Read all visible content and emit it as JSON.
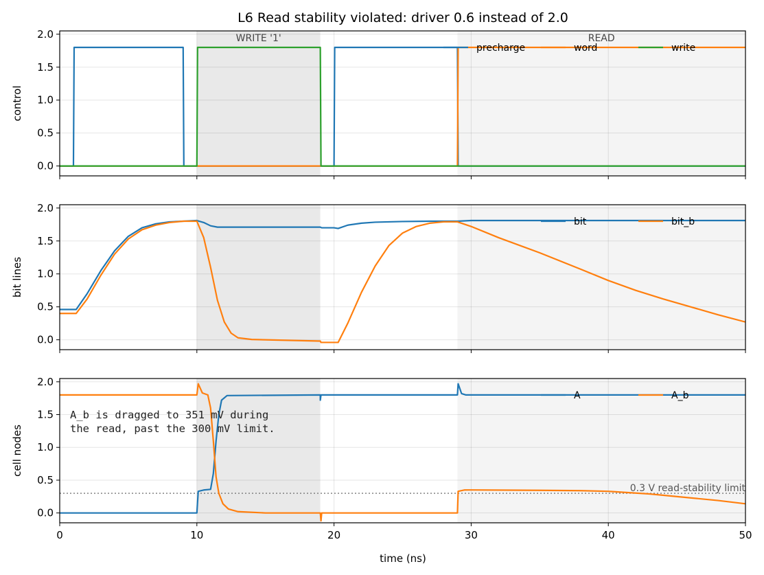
{
  "chart_data": {
    "type": "line",
    "title": "L6  Read stability violated: driver 0.6 instead of 2.0",
    "xlabel": "time (ns)",
    "xlim": [
      0,
      50
    ],
    "x_ticks": [
      "0",
      "10",
      "20",
      "30",
      "40",
      "50"
    ],
    "y_ticks": [
      "0.0",
      "0.5",
      "1.0",
      "1.5",
      "2.0"
    ],
    "regions": [
      {
        "label": "WRITE '1'",
        "x": [
          10,
          19
        ],
        "color": "#e9e9e9"
      },
      {
        "label": "READ",
        "x": [
          29,
          50
        ],
        "color": "#f4f4f4"
      }
    ],
    "panels": [
      {
        "ylabel": "control",
        "ylim": [
          -0.15,
          2.05
        ],
        "legend_placement": "top-right",
        "series": [
          {
            "name": "precharge",
            "color": "#1f77b4",
            "points": [
              [
                0,
                0
              ],
              [
                1,
                0
              ],
              [
                1.05,
                1.8
              ],
              [
                9,
                1.8
              ],
              [
                9.05,
                0
              ],
              [
                20,
                0
              ],
              [
                20.05,
                1.8
              ],
              [
                29,
                1.8
              ],
              [
                29.05,
                0
              ],
              [
                50,
                0
              ]
            ]
          },
          {
            "name": "word",
            "color": "#ff7f0e",
            "points": [
              [
                0,
                0
              ],
              [
                29,
                0
              ],
              [
                29.05,
                1.8
              ],
              [
                50,
                1.8
              ]
            ]
          },
          {
            "name": "write",
            "color": "#2ca02c",
            "points": [
              [
                0,
                0
              ],
              [
                10,
                0
              ],
              [
                10.05,
                1.8
              ],
              [
                19,
                1.8
              ],
              [
                19.05,
                0
              ],
              [
                50,
                0
              ]
            ]
          }
        ]
      },
      {
        "ylabel": "bit lines",
        "ylim": [
          -0.15,
          2.05
        ],
        "legend_placement": "top-right",
        "series": [
          {
            "name": "bit",
            "color": "#1f77b4",
            "points": [
              [
                0,
                0.46
              ],
              [
                1.2,
                0.46
              ],
              [
                2,
                0.7
              ],
              [
                3,
                1.05
              ],
              [
                4,
                1.35
              ],
              [
                5,
                1.57
              ],
              [
                6,
                1.7
              ],
              [
                7,
                1.76
              ],
              [
                8,
                1.79
              ],
              [
                9,
                1.8
              ],
              [
                10,
                1.81
              ],
              [
                10.5,
                1.78
              ],
              [
                11,
                1.73
              ],
              [
                11.5,
                1.71
              ],
              [
                12,
                1.71
              ],
              [
                19,
                1.71
              ],
              [
                19.1,
                1.7
              ],
              [
                20,
                1.7
              ],
              [
                20.3,
                1.69
              ],
              [
                21,
                1.74
              ],
              [
                22,
                1.77
              ],
              [
                23,
                1.785
              ],
              [
                25,
                1.795
              ],
              [
                27,
                1.8
              ],
              [
                29,
                1.8
              ],
              [
                30,
                1.81
              ],
              [
                50,
                1.81
              ]
            ]
          },
          {
            "name": "bit_b",
            "color": "#ff7f0e",
            "points": [
              [
                0,
                0.4
              ],
              [
                1.2,
                0.4
              ],
              [
                2,
                0.62
              ],
              [
                3,
                0.98
              ],
              [
                4,
                1.3
              ],
              [
                5,
                1.53
              ],
              [
                6,
                1.67
              ],
              [
                7,
                1.74
              ],
              [
                8,
                1.78
              ],
              [
                9,
                1.8
              ],
              [
                10,
                1.8
              ],
              [
                10.5,
                1.55
              ],
              [
                11,
                1.1
              ],
              [
                11.5,
                0.6
              ],
              [
                12,
                0.27
              ],
              [
                12.5,
                0.1
              ],
              [
                13,
                0.03
              ],
              [
                14,
                0.005
              ],
              [
                15,
                0
              ],
              [
                19,
                -0.02
              ],
              [
                19.05,
                -0.04
              ],
              [
                20.3,
                -0.04
              ],
              [
                21,
                0.25
              ],
              [
                22,
                0.72
              ],
              [
                23,
                1.12
              ],
              [
                24,
                1.43
              ],
              [
                25,
                1.62
              ],
              [
                26,
                1.72
              ],
              [
                27,
                1.77
              ],
              [
                28,
                1.79
              ],
              [
                29,
                1.79
              ],
              [
                30,
                1.72
              ],
              [
                32,
                1.55
              ],
              [
                35,
                1.32
              ],
              [
                38,
                1.07
              ],
              [
                40,
                0.9
              ],
              [
                42,
                0.75
              ],
              [
                44,
                0.62
              ],
              [
                46,
                0.5
              ],
              [
                48,
                0.38
              ],
              [
                50,
                0.27
              ]
            ]
          }
        ]
      },
      {
        "ylabel": "cell nodes",
        "ylim": [
          -0.15,
          2.05
        ],
        "legend_placement": "top-right",
        "limit": {
          "y": 0.3,
          "label": "0.3 V read-stability limit"
        },
        "annotation": [
          "A_b is dragged to 351 mV during",
          "the read, past the 300 mV limit."
        ],
        "series": [
          {
            "name": "A",
            "color": "#1f77b4",
            "points": [
              [
                0,
                0
              ],
              [
                10,
                0
              ],
              [
                10.1,
                0.33
              ],
              [
                10.5,
                0.35
              ],
              [
                11,
                0.36
              ],
              [
                11.2,
                0.6
              ],
              [
                11.4,
                1.1
              ],
              [
                11.6,
                1.5
              ],
              [
                11.8,
                1.72
              ],
              [
                12.2,
                1.79
              ],
              [
                19,
                1.8
              ],
              [
                19,
                1.72
              ],
              [
                19.05,
                1.8
              ],
              [
                29,
                1.8
              ],
              [
                29.05,
                1.97
              ],
              [
                29.3,
                1.82
              ],
              [
                29.6,
                1.8
              ],
              [
                50,
                1.8
              ]
            ]
          },
          {
            "name": "A_b",
            "color": "#ff7f0e",
            "points": [
              [
                0,
                1.8
              ],
              [
                10,
                1.8
              ],
              [
                10.1,
                1.97
              ],
              [
                10.4,
                1.83
              ],
              [
                10.8,
                1.8
              ],
              [
                11,
                1.6
              ],
              [
                11.2,
                1.1
              ],
              [
                11.4,
                0.55
              ],
              [
                11.6,
                0.3
              ],
              [
                11.9,
                0.14
              ],
              [
                12.3,
                0.06
              ],
              [
                13,
                0.02
              ],
              [
                15,
                0
              ],
              [
                19,
                0
              ],
              [
                19.05,
                -0.12
              ],
              [
                19.1,
                0
              ],
              [
                29,
                0
              ],
              [
                29.05,
                0.33
              ],
              [
                29.5,
                0.35
              ],
              [
                30,
                0.351
              ],
              [
                35,
                0.345
              ],
              [
                38,
                0.34
              ],
              [
                40,
                0.33
              ],
              [
                43,
                0.29
              ],
              [
                46,
                0.23
              ],
              [
                48,
                0.19
              ],
              [
                50,
                0.14
              ]
            ]
          }
        ]
      }
    ]
  }
}
